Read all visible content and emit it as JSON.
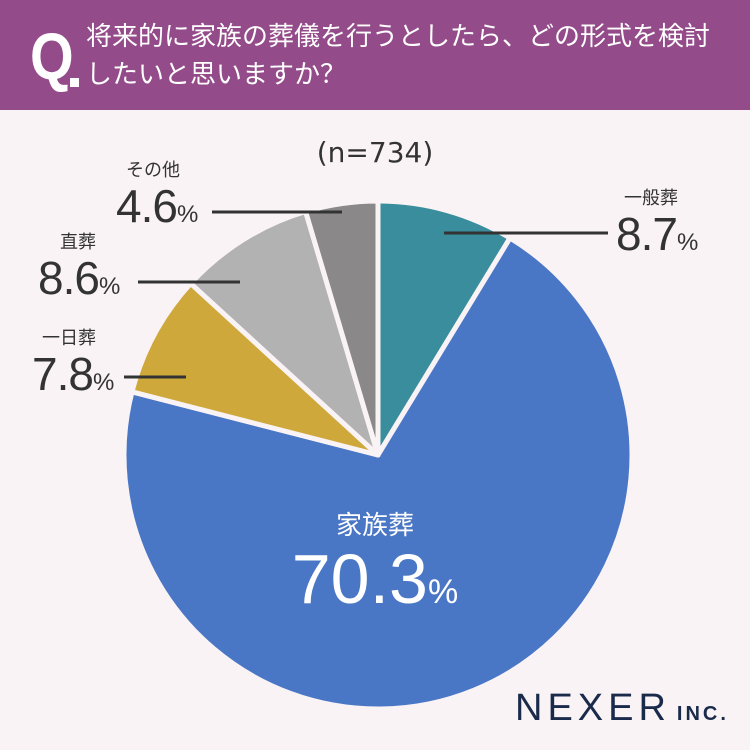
{
  "header": {
    "q_mark": "Q",
    "question": "将来的に家族の葬儀を行うとしたら、どの形式を検討したいと思いますか？"
  },
  "sample": "(n=734)",
  "colors": {
    "header_bg": "#934b8a",
    "background": "#f9f3f5",
    "一般葬": "#3a8d9c",
    "家族葬": "#4a77c5",
    "一日葬": "#cfa83b",
    "直葬": "#b3b2b3",
    "その他": "#8a8888"
  },
  "chart_data": {
    "type": "pie",
    "title": "将来的に家族の葬儀を行うとしたら、どの形式を検討したいと思いますか？",
    "n": 734,
    "start_angle": "12 o'clock, clockwise",
    "categories": [
      "一般葬",
      "家族葬",
      "一日葬",
      "直葬",
      "その他"
    ],
    "values": [
      8.7,
      70.3,
      7.8,
      8.6,
      4.6
    ],
    "unit": "%"
  },
  "labels": {
    "s0": {
      "name": "一般葬",
      "value": "8.7",
      "pct": "%"
    },
    "s1": {
      "name": "家族葬",
      "value": "70.3",
      "pct": "%"
    },
    "s2": {
      "name": "一日葬",
      "value": "7.8",
      "pct": "%"
    },
    "s3": {
      "name": "直葬",
      "value": "8.6",
      "pct": "%"
    },
    "s4": {
      "name": "その他",
      "value": "4.6",
      "pct": "%"
    }
  },
  "logo": {
    "main": "NEXER",
    "inc": "INC."
  }
}
